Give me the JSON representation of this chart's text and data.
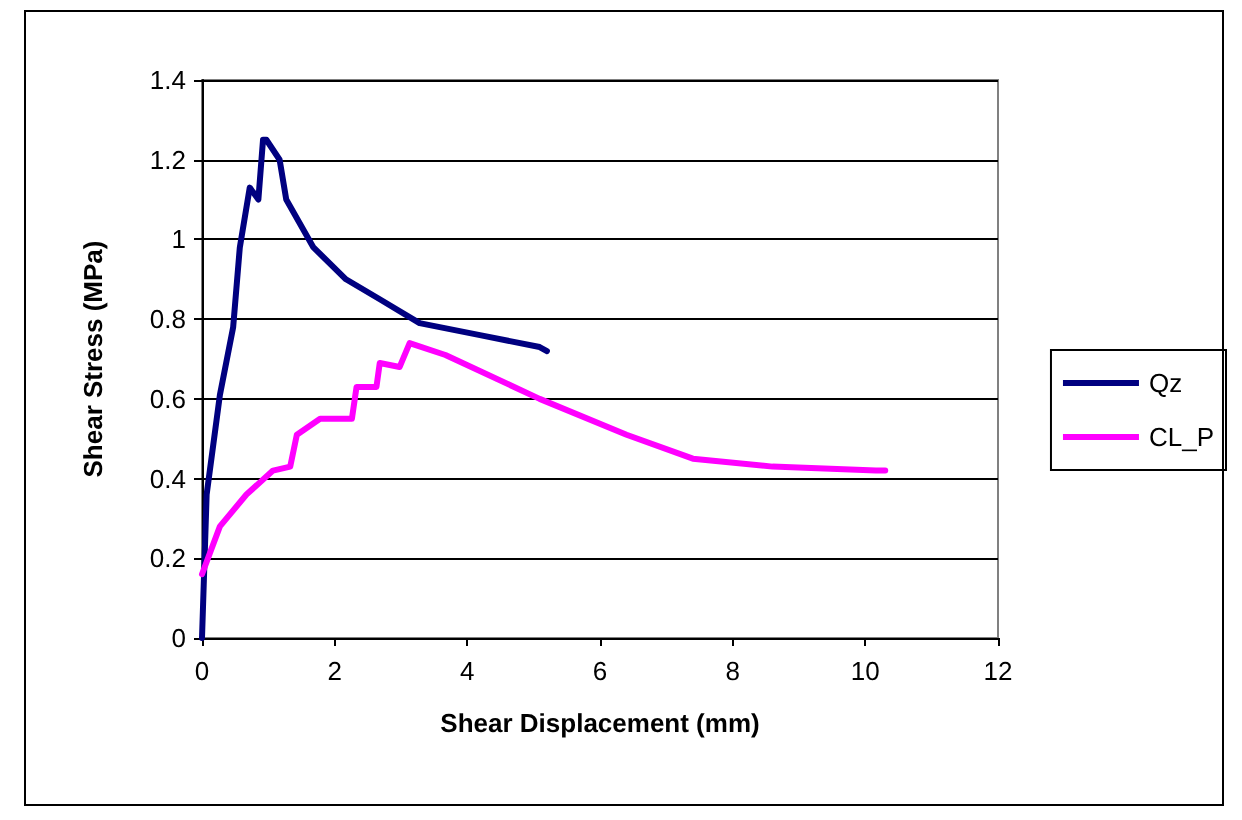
{
  "chart_data": {
    "type": "line",
    "xlabel": "Shear Displacement (mm)",
    "ylabel": "Shear Stress (MPa)",
    "xlim": [
      0,
      12
    ],
    "xticks": [
      0,
      2,
      4,
      6,
      8,
      10,
      12
    ],
    "ylim": [
      0,
      1.4
    ],
    "yticks": [
      0,
      0.2,
      0.4,
      0.6,
      0.8,
      1,
      1.2,
      1.4
    ],
    "grid": "y",
    "legend": "right",
    "marker": "none",
    "line_style": "solid",
    "series": [
      {
        "name": "Qz",
        "color": "#000080",
        "x": [
          0,
          0.07,
          0.27,
          0.47,
          0.57,
          0.72,
          0.85,
          0.92,
          0.97,
          1.17,
          1.27,
          1.68,
          2.17,
          2.68,
          3.28,
          4.19,
          5.09,
          5.2
        ],
        "values": [
          0,
          0.36,
          0.61,
          0.78,
          0.98,
          1.13,
          1.1,
          1.25,
          1.25,
          1.2,
          1.1,
          0.98,
          0.9,
          0.85,
          0.79,
          0.76,
          0.73,
          0.72
        ]
      },
      {
        "name": "CL_P",
        "color": "#ff00ff",
        "x": [
          0,
          0.27,
          0.67,
          1.07,
          1.33,
          1.43,
          1.78,
          2.26,
          2.33,
          2.63,
          2.68,
          2.98,
          3.13,
          3.67,
          5.09,
          6.4,
          7.4,
          8.6,
          10.16,
          10.3
        ],
        "values": [
          0.16,
          0.28,
          0.36,
          0.42,
          0.43,
          0.51,
          0.55,
          0.55,
          0.63,
          0.63,
          0.69,
          0.68,
          0.74,
          0.71,
          0.6,
          0.51,
          0.45,
          0.43,
          0.42,
          0.42
        ]
      }
    ]
  }
}
